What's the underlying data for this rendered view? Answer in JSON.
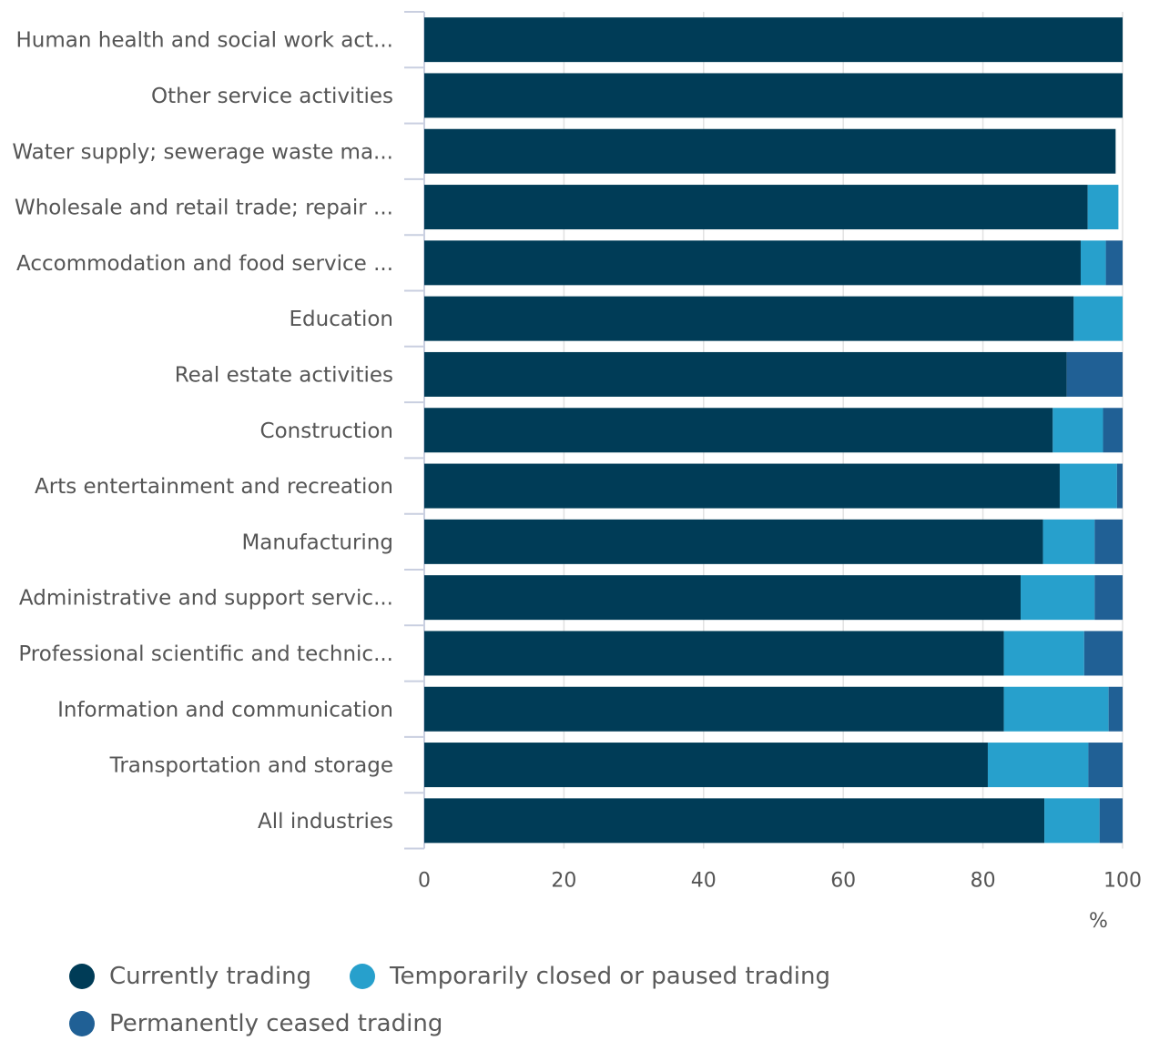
{
  "chart_data": {
    "type": "bar",
    "orientation": "horizontal",
    "stacked": true,
    "categories": [
      "Human health and social work act...",
      "Other service activities",
      "Water supply; sewerage waste ma...",
      "Wholesale and retail trade; repair ...",
      "Accommodation and food service ...",
      "Education",
      "Real estate activities",
      "Construction",
      "Arts entertainment and recreation",
      "Manufacturing",
      "Administrative and support servic...",
      "Professional scientific and technic...",
      "Information and communication",
      "Transportation and storage",
      "All industries"
    ],
    "series": [
      {
        "name": "Currently trading",
        "color": "#003c57",
        "values": [
          100,
          100,
          99,
          95,
          94,
          93,
          92,
          90,
          91,
          88.6,
          85.4,
          83,
          83,
          80.7,
          88.8
        ]
      },
      {
        "name": "Temporarily closed or paused trading",
        "color": "#27a0cc",
        "values": [
          0,
          0,
          0,
          4.4,
          3.6,
          7,
          0,
          7.2,
          8.2,
          7.4,
          10.6,
          11.5,
          15,
          14.4,
          7.9
        ]
      },
      {
        "name": "Permanently ceased trading",
        "color": "#206095",
        "values": [
          0,
          0,
          0,
          0,
          2.4,
          0,
          8,
          2.8,
          0.8,
          4,
          4,
          5.5,
          2,
          4.9,
          3.3
        ]
      }
    ],
    "xlim": [
      0,
      100
    ],
    "xticks": [
      "0",
      "20",
      "40",
      "60",
      "80",
      "100"
    ],
    "xlabel": "%",
    "grid": true,
    "legend_position": "bottom"
  }
}
